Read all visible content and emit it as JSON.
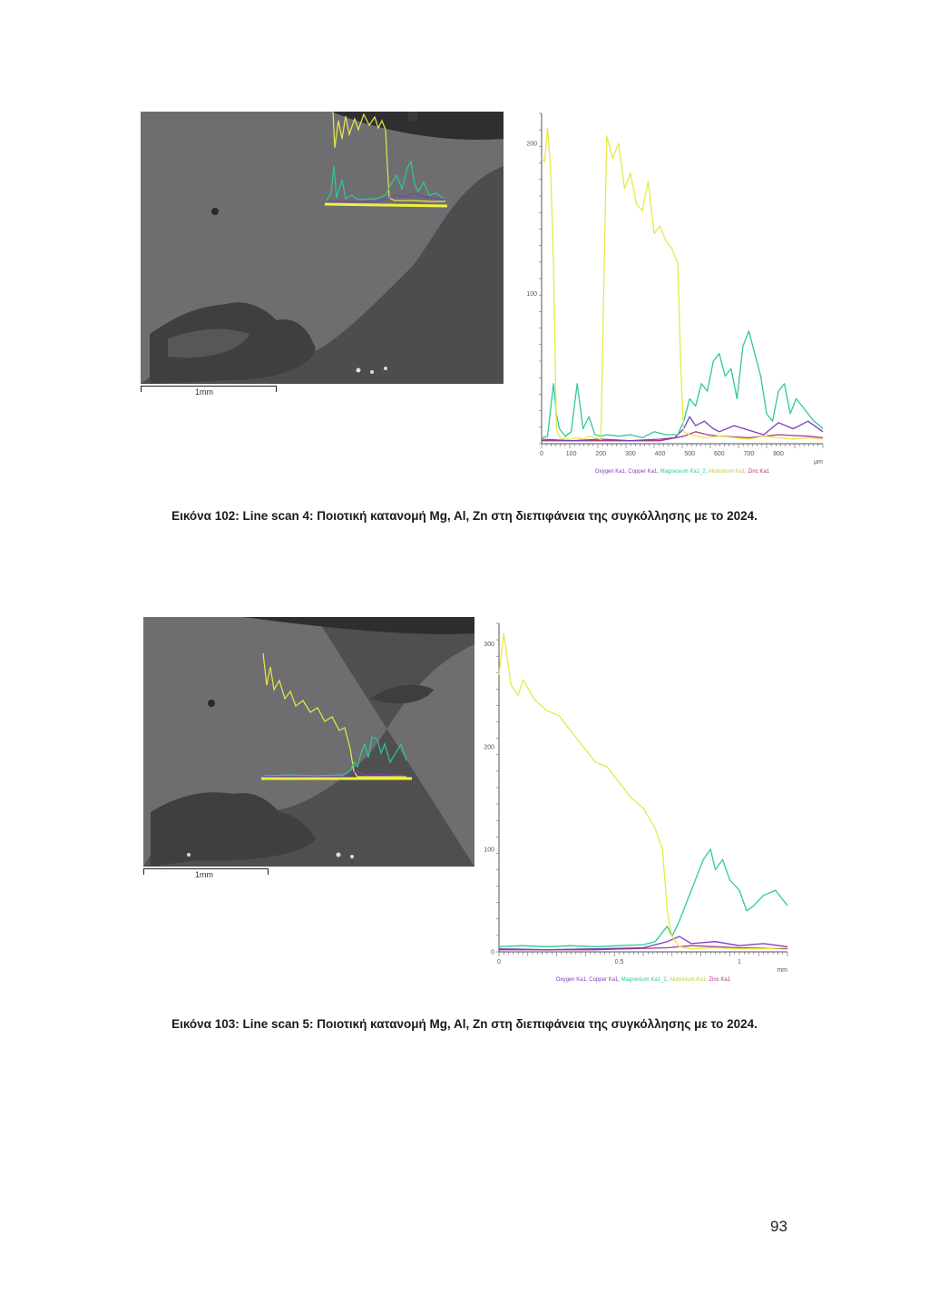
{
  "figures": [
    {
      "caption": "Εικόνα 102: Line scan 4: Ποιοτική κατανομή Mg, Al, Zn στη διεπιφάνεια της συγκόλλησης με το 2024.",
      "scale_bar_label": "1mm",
      "chart_data": {
        "type": "line",
        "ylim": [
          0,
          220
        ],
        "xlim": [
          0,
          950
        ],
        "yticks": [
          {
            "value": 200,
            "label": "200"
          },
          {
            "value": 100,
            "label": "100"
          }
        ],
        "xticks": [
          {
            "value": 0,
            "label": "0"
          },
          {
            "value": 100,
            "label": "100"
          },
          {
            "value": 200,
            "label": "200"
          },
          {
            "value": 300,
            "label": "300"
          },
          {
            "value": 400,
            "label": "400"
          },
          {
            "value": 500,
            "label": "500"
          },
          {
            "value": 600,
            "label": "600"
          },
          {
            "value": 700,
            "label": "700"
          },
          {
            "value": 800,
            "label": "800"
          }
        ],
        "x_unit_label": "μm",
        "legend": [
          "Oxygen Ka1",
          "Copper Ka1",
          "Magnesium Ka1_2",
          "Aluminium Ka1",
          "Zinc Ka1"
        ],
        "series": [
          {
            "name": "Aluminium Ka1",
            "color": "#e6e84a",
            "x": [
              0,
              10,
              20,
              30,
              40,
              50,
              60,
              70,
              80,
              90,
              100,
              120,
              140,
              160,
              180,
              200,
              220,
              240,
              260,
              280,
              300,
              320,
              340,
              360,
              380,
              400,
              420,
              440,
              460,
              470,
              480,
              500,
              550,
              600,
              650,
              700,
              750,
              800,
              850,
              900,
              950
            ],
            "y": [
              190,
              188,
              210,
              185,
              120,
              10,
              5,
              3,
              4,
              3,
              3,
              4,
              3,
              5,
              4,
              3,
              205,
              190,
              200,
              170,
              180,
              160,
              155,
              175,
              140,
              145,
              135,
              130,
              120,
              50,
              8,
              6,
              4,
              5,
              4,
              3,
              5,
              4,
              3,
              4,
              3
            ]
          },
          {
            "name": "Magnesium Ka1_2",
            "color": "#2fc99a",
            "x": [
              0,
              20,
              40,
              50,
              60,
              80,
              100,
              120,
              140,
              160,
              180,
              200,
              220,
              260,
              300,
              340,
              380,
              420,
              460,
              480,
              500,
              520,
              540,
              560,
              580,
              600,
              620,
              640,
              660,
              680,
              700,
              720,
              740,
              760,
              780,
              800,
              820,
              840,
              860,
              880,
              900,
              920,
              940,
              950
            ],
            "y": [
              4,
              5,
              40,
              20,
              10,
              5,
              8,
              40,
              10,
              18,
              6,
              5,
              6,
              5,
              6,
              4,
              8,
              6,
              6,
              15,
              30,
              25,
              40,
              35,
              55,
              60,
              45,
              50,
              30,
              65,
              75,
              60,
              45,
              20,
              15,
              35,
              40,
              20,
              30,
              25,
              20,
              15,
              12,
              10
            ]
          },
          {
            "name": "Copper Ka1",
            "color": "#7a3fb8",
            "x": [
              0,
              100,
              200,
              300,
              400,
              450,
              480,
              500,
              520,
              550,
              580,
              600,
              650,
              700,
              750,
              800,
              850,
              900,
              950
            ],
            "y": [
              3,
              2,
              3,
              2,
              3,
              4,
              10,
              18,
              12,
              15,
              10,
              8,
              12,
              9,
              6,
              14,
              10,
              15,
              8
            ]
          },
          {
            "name": "Zinc Ka1",
            "color": "#b03a7c",
            "x": [
              0,
              200,
              400,
              480,
              520,
              560,
              600,
              700,
              800,
              900,
              950
            ],
            "y": [
              2,
              2,
              2,
              5,
              8,
              6,
              5,
              4,
              6,
              5,
              4
            ]
          }
        ]
      }
    },
    {
      "caption": "Εικόνα 103: Line scan 5: Ποιοτική κατανομή Mg, Al, Zn στη διεπιφάνεια της συγκόλλησης με το 2024.",
      "scale_bar_label": "1mm",
      "chart_data": {
        "type": "line",
        "ylim": [
          0,
          320
        ],
        "xlim": [
          0,
          1.2
        ],
        "yticks": [
          {
            "value": 300,
            "label": "300"
          },
          {
            "value": 200,
            "label": "200"
          },
          {
            "value": 100,
            "label": "100"
          },
          {
            "value": 0,
            "label": "0"
          }
        ],
        "xticks": [
          {
            "value": 0,
            "label": "0"
          },
          {
            "value": 0.5,
            "label": "0.5"
          },
          {
            "value": 1,
            "label": "1"
          }
        ],
        "x_unit_label": "mm",
        "legend": [
          "Oxygen Ka1",
          "Copper Ka1",
          "Magnesium Ka1_2",
          "Aluminium Ka1",
          "Zinc Ka1"
        ],
        "series": [
          {
            "name": "Aluminium Ka1",
            "color": "#e6e84a",
            "x": [
              0,
              0.02,
              0.05,
              0.08,
              0.1,
              0.15,
              0.2,
              0.25,
              0.3,
              0.35,
              0.4,
              0.45,
              0.5,
              0.55,
              0.6,
              0.65,
              0.68,
              0.7,
              0.72,
              0.75,
              0.8,
              0.9,
              1.0,
              1.1,
              1.2
            ],
            "y": [
              270,
              310,
              260,
              250,
              265,
              245,
              235,
              230,
              215,
              200,
              185,
              180,
              165,
              150,
              140,
              120,
              100,
              40,
              15,
              5,
              3,
              4,
              3,
              3,
              4
            ]
          },
          {
            "name": "Magnesium Ka1_2",
            "color": "#2fc99a",
            "x": [
              0,
              0.1,
              0.2,
              0.3,
              0.4,
              0.5,
              0.6,
              0.65,
              0.7,
              0.72,
              0.75,
              0.8,
              0.85,
              0.88,
              0.9,
              0.93,
              0.96,
              1.0,
              1.03,
              1.06,
              1.1,
              1.15,
              1.2
            ],
            "y": [
              5,
              6,
              5,
              6,
              5,
              6,
              7,
              10,
              25,
              15,
              30,
              60,
              90,
              100,
              80,
              90,
              70,
              60,
              40,
              45,
              55,
              60,
              45
            ]
          },
          {
            "name": "Copper Ka1",
            "color": "#7a3fb8",
            "x": [
              0,
              0.2,
              0.4,
              0.6,
              0.7,
              0.75,
              0.8,
              0.9,
              1.0,
              1.1,
              1.2
            ],
            "y": [
              3,
              2,
              3,
              4,
              10,
              15,
              8,
              10,
              6,
              8,
              5
            ]
          },
          {
            "name": "Zinc Ka1",
            "color": "#b03a7c",
            "x": [
              0,
              0.4,
              0.7,
              0.8,
              0.9,
              1.0,
              1.2
            ],
            "y": [
              2,
              2,
              4,
              6,
              5,
              4,
              3
            ]
          }
        ]
      }
    }
  ],
  "page_number": "93"
}
